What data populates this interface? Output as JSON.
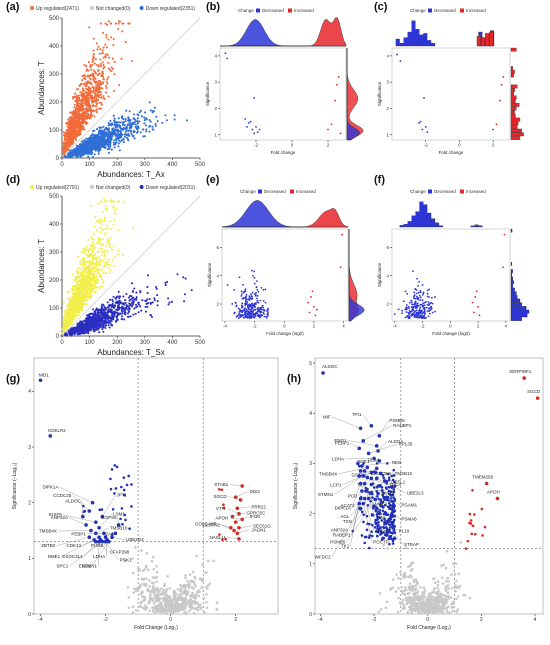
{
  "panel_labels": [
    "(a)",
    "(b)",
    "(c)",
    "(d)",
    "(e)",
    "(f)",
    "(g)",
    "(h)"
  ],
  "colors": {
    "up_orange": "#f26b3a",
    "down_blue_light": "#2f6fd6",
    "yellow": "#f2ee4a",
    "down_blue_dark": "#2b2fc0",
    "increased_red": "#e8262b",
    "decreased_blue": "#2d35d6",
    "not_changed_grey": "#c8c8c8",
    "dark_blue_point": "#1f2fb8",
    "red_point": "#d42a20"
  },
  "chart_data": [
    {
      "id": "a",
      "type": "scatter",
      "xlabel": "Abundances: T_Ax",
      "ylabel": "Abundances: T",
      "xlim": [
        0,
        500
      ],
      "ylim": [
        0,
        500
      ],
      "xticks": [
        "0",
        "100",
        "200",
        "300",
        "400",
        "500"
      ],
      "yticks": [
        "0",
        "100",
        "200",
        "300",
        "400",
        "500"
      ],
      "diagonal": true,
      "legend": [
        "Up regulated(2471)",
        "Not changed(0)",
        "Down regulated(2351)"
      ],
      "series": [
        {
          "name": "Up regulated(2471)",
          "color": "#f26b3a",
          "count": 2471
        },
        {
          "name": "Not changed(0)",
          "color": "#c8c8c8",
          "count": 0
        },
        {
          "name": "Down regulated(2351)",
          "color": "#2f6fd6",
          "count": 2351
        }
      ]
    },
    {
      "id": "b",
      "type": "scatter",
      "xlabel": "Fold change",
      "ylabel": "Significance",
      "xlim": [
        -4,
        3
      ],
      "ylim": [
        0.8,
        4.3
      ],
      "xticks": [
        "-2",
        "0",
        "2"
      ],
      "yticks": [
        "1",
        "2",
        "3",
        "4"
      ],
      "legend": [
        "Change",
        "Decreased",
        "Increased"
      ],
      "series": [
        {
          "name": "Decreased",
          "color": "#2d35d6",
          "points": [
            [
              -3.7,
              4.1
            ],
            [
              -3.6,
              3.9
            ],
            [
              -2.1,
              2.4
            ],
            [
              -2.3,
              1.5
            ],
            [
              -1.9,
              1.1
            ],
            [
              -2.0,
              1.3
            ],
            [
              -2.2,
              1.2
            ],
            [
              -2.4,
              1.45
            ],
            [
              -2.6,
              1.6
            ],
            [
              -2.1,
              1.05
            ],
            [
              -1.8,
              1.2
            ],
            [
              -2.5,
              1.3
            ]
          ]
        },
        {
          "name": "Increased",
          "color": "#e8262b",
          "points": [
            [
              2.6,
              3.2
            ],
            [
              2.4,
              2.3
            ],
            [
              2.2,
              1.4
            ],
            [
              2.0,
              1.2
            ],
            [
              2.5,
              2.9
            ],
            [
              2.7,
              1.05
            ]
          ]
        }
      ]
    },
    {
      "id": "c",
      "type": "scatter",
      "xlabel": "Fold change",
      "ylabel": "Significance",
      "xlim": [
        -4,
        3
      ],
      "ylim": [
        0.8,
        4.3
      ],
      "xticks": [
        "-2",
        "0",
        "2"
      ],
      "yticks": [
        "1",
        "2",
        "3",
        "4"
      ],
      "legend": [
        "Change",
        "Decreased",
        "Increased"
      ],
      "series": [
        {
          "name": "Decreased",
          "color": "#2d35d6",
          "points": [
            [
              -3.7,
              4.05
            ],
            [
              -3.5,
              3.8
            ],
            [
              -2.1,
              2.4
            ],
            [
              -2.3,
              1.5
            ],
            [
              -1.9,
              1.1
            ],
            [
              -2.0,
              1.3
            ],
            [
              -2.2,
              1.2
            ],
            [
              -2.4,
              1.45
            ]
          ]
        },
        {
          "name": "Increased",
          "color": "#e8262b",
          "points": [
            [
              2.6,
              3.2
            ],
            [
              2.4,
              2.3
            ],
            [
              2.2,
              1.4
            ],
            [
              2.0,
              1.2
            ],
            [
              2.5,
              2.9
            ]
          ]
        }
      ]
    },
    {
      "id": "d",
      "type": "scatter",
      "xlabel": "Abundances: T_Sx",
      "ylabel": "Abundances: T",
      "xlim": [
        0,
        500
      ],
      "ylim": [
        0,
        500
      ],
      "xticks": [
        "0",
        "100",
        "200",
        "300",
        "400",
        "500"
      ],
      "yticks": [
        "0",
        "100",
        "200",
        "300",
        "400",
        "500"
      ],
      "diagonal": true,
      "legend": [
        "Up regulated(2791)",
        "Not changed(0)",
        "Down regulated(2031)"
      ],
      "series": [
        {
          "name": "Up regulated(2791)",
          "color": "#f2ee4a",
          "count": 2791
        },
        {
          "name": "Not changed(0)",
          "color": "#c8c8c8",
          "count": 0
        },
        {
          "name": "Down regulated(2031)",
          "color": "#2b2fc0",
          "count": 2031
        }
      ]
    },
    {
      "id": "e",
      "type": "scatter",
      "xlabel": "Fold change (log2)",
      "ylabel": "Significance",
      "xlim": [
        -4.2,
        4.3
      ],
      "ylim": [
        0.8,
        7.3
      ],
      "xticks": [
        "-4",
        "-2",
        "0",
        "2",
        "4"
      ],
      "yticks": [
        "2",
        "4",
        "6"
      ],
      "legend": [
        "Change",
        "Decreased",
        "Increased"
      ],
      "series": [
        {
          "name": "Decreased",
          "color": "#2d35d6",
          "count": 260
        },
        {
          "name": "Increased",
          "color": "#e8262b",
          "points": [
            [
              1.6,
              2.1
            ],
            [
              1.8,
              2.5
            ],
            [
              2.0,
              1.8
            ],
            [
              1.7,
              1.4
            ],
            [
              2.1,
              1.2
            ],
            [
              1.9,
              2.9
            ],
            [
              3.9,
              6.9
            ],
            [
              3.8,
              4.6
            ],
            [
              2.2,
              1.6
            ]
          ]
        }
      ]
    },
    {
      "id": "f",
      "type": "scatter",
      "xlabel": "Fold change (log2)",
      "ylabel": "Significance",
      "xlim": [
        -4.2,
        4.3
      ],
      "ylim": [
        0.8,
        7.3
      ],
      "xticks": [
        "-4",
        "-2",
        "0",
        "2",
        "4"
      ],
      "yticks": [
        "2",
        "4",
        "6"
      ],
      "legend": [
        "Change",
        "Decreased",
        "Increased"
      ],
      "series": [
        {
          "name": "Decreased",
          "color": "#2d35d6",
          "count": 220
        },
        {
          "name": "Increased",
          "color": "#e8262b",
          "points": [
            [
              1.6,
              2.1
            ],
            [
              1.8,
              2.5
            ],
            [
              2.0,
              1.8
            ],
            [
              1.7,
              1.4
            ],
            [
              2.1,
              1.2
            ],
            [
              1.9,
              2.9
            ],
            [
              3.9,
              6.9
            ],
            [
              3.8,
              4.6
            ]
          ]
        }
      ]
    },
    {
      "id": "g",
      "type": "scatter",
      "xlabel": "Fold Change (Log₂)",
      "ylabel": "Significance (−Log₁₀)",
      "xlim": [
        -4.2,
        3.3
      ],
      "ylim": [
        0,
        4.6
      ],
      "xticks": [
        "-4",
        "-2",
        "0",
        "2"
      ],
      "yticks": [
        "0",
        "1",
        "2",
        "3",
        "4"
      ],
      "vlines": [
        -1,
        1
      ],
      "hline": 1.3,
      "labeled_points": [
        {
          "label": "NID1",
          "x": -4.0,
          "y": 4.2,
          "side": "down"
        },
        {
          "label": "KDELR2",
          "x": -3.7,
          "y": 3.2,
          "side": "down"
        },
        {
          "label": "DIPK1A",
          "x": -2.4,
          "y": 2.0,
          "side": "down"
        },
        {
          "label": "CCDC25",
          "x": -2.5,
          "y": 1.85,
          "side": "down"
        },
        {
          "label": "ALDOC",
          "x": -2.7,
          "y": 1.75,
          "side": "down"
        },
        {
          "label": "JPT1",
          "x": -2.1,
          "y": 1.75,
          "side": "down"
        },
        {
          "label": "IGSF9",
          "x": -2.3,
          "y": 1.65,
          "side": "down"
        },
        {
          "label": "ANP32A",
          "x": -2.6,
          "y": 1.6,
          "side": "down"
        },
        {
          "label": "COPS6",
          "x": -1.6,
          "y": 1.6,
          "side": "down"
        },
        {
          "label": "LSM1",
          "x": -2.2,
          "y": 1.55,
          "side": "down"
        },
        {
          "label": "TMSB4X",
          "x": -2.45,
          "y": 1.5,
          "side": "down"
        },
        {
          "label": "PEBP1",
          "x": -2.05,
          "y": 1.45,
          "side": "down"
        },
        {
          "label": "H2AJ",
          "x": -1.7,
          "y": 1.45,
          "side": "down"
        },
        {
          "label": "TMSB10",
          "x": -2.3,
          "y": 1.45,
          "side": "down"
        },
        {
          "label": "ZBTB2",
          "x": -2.5,
          "y": 1.38,
          "side": "down"
        },
        {
          "label": "CDK13",
          "x": -2.2,
          "y": 1.38,
          "side": "down"
        },
        {
          "label": "PURB",
          "x": -2.0,
          "y": 1.38,
          "side": "down"
        },
        {
          "label": "UBE2D3",
          "x": -1.8,
          "y": 1.38,
          "side": "down"
        },
        {
          "label": "NME1",
          "x": -2.35,
          "y": 1.33,
          "side": "down"
        },
        {
          "label": "EXOC3L4",
          "x": -2.15,
          "y": 1.33,
          "side": "down"
        },
        {
          "label": "LDHA",
          "x": -1.95,
          "y": 1.33,
          "side": "down"
        },
        {
          "label": "CFAP298",
          "x": -2.3,
          "y": 1.3,
          "side": "down"
        },
        {
          "label": "SPC1",
          "x": -2.1,
          "y": 1.3,
          "side": "down"
        },
        {
          "label": "END1",
          "x": -1.9,
          "y": 1.3,
          "side": "down"
        },
        {
          "label": "STMN1",
          "x": -2.2,
          "y": 1.3,
          "side": "down"
        },
        {
          "label": "PGK1",
          "x": -2.0,
          "y": 1.3,
          "side": "down"
        },
        {
          "label": "STAB1",
          "x": 2.2,
          "y": 2.3,
          "side": "up"
        },
        {
          "label": "DDI2",
          "x": 2.0,
          "y": 2.1,
          "side": "up"
        },
        {
          "label": "SGCD",
          "x": 2.15,
          "y": 2.05,
          "side": "up"
        },
        {
          "label": "PRR22",
          "x": 2.05,
          "y": 1.9,
          "side": "up"
        },
        {
          "label": "VTN",
          "x": 2.1,
          "y": 1.8,
          "side": "up"
        },
        {
          "label": "GPRC5C",
          "x": 1.9,
          "y": 1.75,
          "side": "up"
        },
        {
          "label": "APOH",
          "x": 2.2,
          "y": 1.7,
          "side": "up"
        },
        {
          "label": "IFI30",
          "x": 2.0,
          "y": 1.65,
          "side": "up"
        },
        {
          "label": "GOLGA8R",
          "x": 1.85,
          "y": 1.55,
          "side": "up"
        },
        {
          "label": "SEC61G",
          "x": 2.1,
          "y": 1.55,
          "side": "up"
        },
        {
          "label": "CLSTN1",
          "x": 1.95,
          "y": 1.5,
          "side": "up"
        },
        {
          "label": "JAGN1",
          "x": 2.05,
          "y": 1.45,
          "side": "up"
        },
        {
          "label": "NAGLU",
          "x": 2.1,
          "y": 1.35,
          "side": "up"
        }
      ]
    },
    {
      "id": "h",
      "type": "scatter",
      "xlabel": "Fold Change (Log₂)",
      "ylabel": "Significance (−Log₁₀)",
      "xlim": [
        -4.2,
        4.3
      ],
      "ylim": [
        0,
        5.1
      ],
      "xticks": [
        "-4",
        "-2",
        "0",
        "2",
        "4"
      ],
      "yticks": [
        "0",
        "1",
        "2",
        "3",
        "4",
        "5"
      ],
      "vlines": [
        -1,
        1
      ],
      "hline": 1.3,
      "labeled_points": [
        {
          "label": "ALDOC",
          "x": -3.9,
          "y": 4.8,
          "side": "down"
        },
        {
          "label": "SERPINF1",
          "x": 3.6,
          "y": 4.7,
          "side": "up"
        },
        {
          "label": "SGCD",
          "x": 4.1,
          "y": 4.3,
          "side": "up"
        },
        {
          "label": "MIF",
          "x": -2.5,
          "y": 3.7,
          "side": "down"
        },
        {
          "label": "TPI1",
          "x": -2.1,
          "y": 3.75,
          "side": "down"
        },
        {
          "label": "PSMB6",
          "x": -1.8,
          "y": 3.55,
          "side": "down"
        },
        {
          "label": "RANBP1",
          "x": -2.4,
          "y": 3.45,
          "side": "down"
        },
        {
          "label": "ENO1",
          "x": -1.9,
          "y": 3.35,
          "side": "down"
        },
        {
          "label": "PEBP1",
          "x": -2.55,
          "y": 3.3,
          "side": "down"
        },
        {
          "label": "ALDOA",
          "x": -1.85,
          "y": 3.25,
          "side": "down"
        },
        {
          "label": "RPL35",
          "x": -2.2,
          "y": 3.2,
          "side": "down"
        },
        {
          "label": "LDHA",
          "x": -2.0,
          "y": 3.1,
          "side": "down"
        },
        {
          "label": "PGK1",
          "x": -1.8,
          "y": 3.05,
          "side": "down"
        },
        {
          "label": "ULK4",
          "x": -2.6,
          "y": 3.0,
          "side": "down"
        },
        {
          "label": "NEB",
          "x": -2.45,
          "y": 2.95,
          "side": "down"
        },
        {
          "label": "TMSB4X",
          "x": -2.25,
          "y": 2.92,
          "side": "down"
        },
        {
          "label": "GSTO1",
          "x": -1.9,
          "y": 2.9,
          "side": "down"
        },
        {
          "label": "EXOC3L4",
          "x": -2.5,
          "y": 2.85,
          "side": "down"
        },
        {
          "label": "TMSB10",
          "x": -2.35,
          "y": 2.85,
          "side": "down"
        },
        {
          "label": "LCP1",
          "x": -2.1,
          "y": 2.82,
          "side": "down"
        },
        {
          "label": "TKT",
          "x": -1.95,
          "y": 2.82,
          "side": "down"
        },
        {
          "label": "COTL1",
          "x": -1.75,
          "y": 2.8,
          "side": "down"
        },
        {
          "label": "TBCA",
          "x": -2.55,
          "y": 2.75,
          "side": "down"
        },
        {
          "label": "STMN1",
          "x": -2.4,
          "y": 2.75,
          "side": "down"
        },
        {
          "label": "PCD",
          "x": -2.25,
          "y": 2.72,
          "side": "down"
        },
        {
          "label": "ENO2",
          "x": -2.1,
          "y": 2.7,
          "side": "down"
        },
        {
          "label": "UBE2L3",
          "x": -1.9,
          "y": 2.7,
          "side": "down"
        },
        {
          "label": "ACAT2",
          "x": -1.6,
          "y": 2.65,
          "side": "down"
        },
        {
          "label": "DIPK1A",
          "x": -2.5,
          "y": 2.6,
          "side": "down"
        },
        {
          "label": "NME2",
          "x": -2.35,
          "y": 2.6,
          "side": "down"
        },
        {
          "label": "PGAM1",
          "x": -2.1,
          "y": 2.58,
          "side": "down"
        },
        {
          "label": "AGL",
          "x": -1.8,
          "y": 2.55,
          "side": "down"
        },
        {
          "label": "TSN",
          "x": -2.45,
          "y": 2.45,
          "side": "down"
        },
        {
          "label": "TMA",
          "x": -2.3,
          "y": 2.45,
          "side": "down"
        },
        {
          "label": "PSMA6",
          "x": -2.1,
          "y": 2.42,
          "side": "down"
        },
        {
          "label": "ANP32A",
          "x": -1.85,
          "y": 2.4,
          "side": "down"
        },
        {
          "label": "RABEP1",
          "x": -2.5,
          "y": 2.3,
          "side": "down"
        },
        {
          "label": "APEH",
          "x": -2.35,
          "y": 2.3,
          "side": "down"
        },
        {
          "label": "PL19",
          "x": -2.2,
          "y": 2.3,
          "side": "down"
        },
        {
          "label": "PSMB5",
          "x": -1.95,
          "y": 2.28,
          "side": "down"
        },
        {
          "label": "TK1",
          "x": -2.55,
          "y": 2.2,
          "side": "down"
        },
        {
          "label": "POCTP",
          "x": -2.4,
          "y": 2.2,
          "side": "down"
        },
        {
          "label": "STRAP",
          "x": -2.0,
          "y": 2.15,
          "side": "down"
        },
        {
          "label": "WFDC2",
          "x": -2.5,
          "y": 2.1,
          "side": "down"
        },
        {
          "label": "TMEM258",
          "x": 2.2,
          "y": 2.6,
          "side": "up"
        },
        {
          "label": "APOH",
          "x": 2.6,
          "y": 2.3,
          "side": "up"
        }
      ]
    }
  ]
}
